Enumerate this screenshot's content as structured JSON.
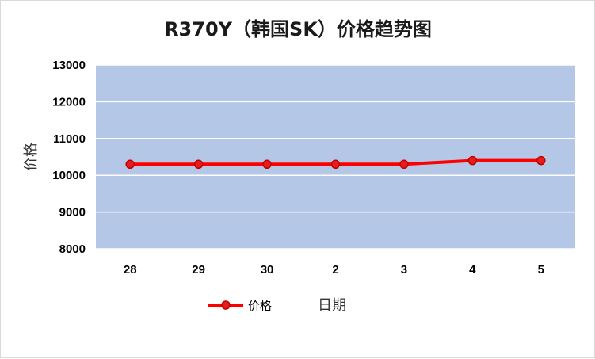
{
  "chart_data": {
    "type": "line",
    "title": "R370Y（韩国SK）价格趋势图",
    "xlabel": "日期",
    "ylabel": "价格",
    "categories": [
      "28",
      "29",
      "30",
      "2",
      "3",
      "4",
      "5"
    ],
    "series": [
      {
        "name": "价格",
        "values": [
          10300,
          10300,
          10300,
          10300,
          10300,
          10400,
          10400
        ]
      }
    ],
    "ylim": [
      8000,
      13000
    ],
    "yticks": [
      8000,
      9000,
      10000,
      11000,
      12000,
      13000
    ],
    "grid": true,
    "legend_position": "bottom",
    "colors": {
      "plot_background": "#b4c7e7",
      "gridline": "#ffffff",
      "line": "#ff0000",
      "marker_fill": "#e81c1c",
      "marker_stroke": "#c00000"
    }
  }
}
